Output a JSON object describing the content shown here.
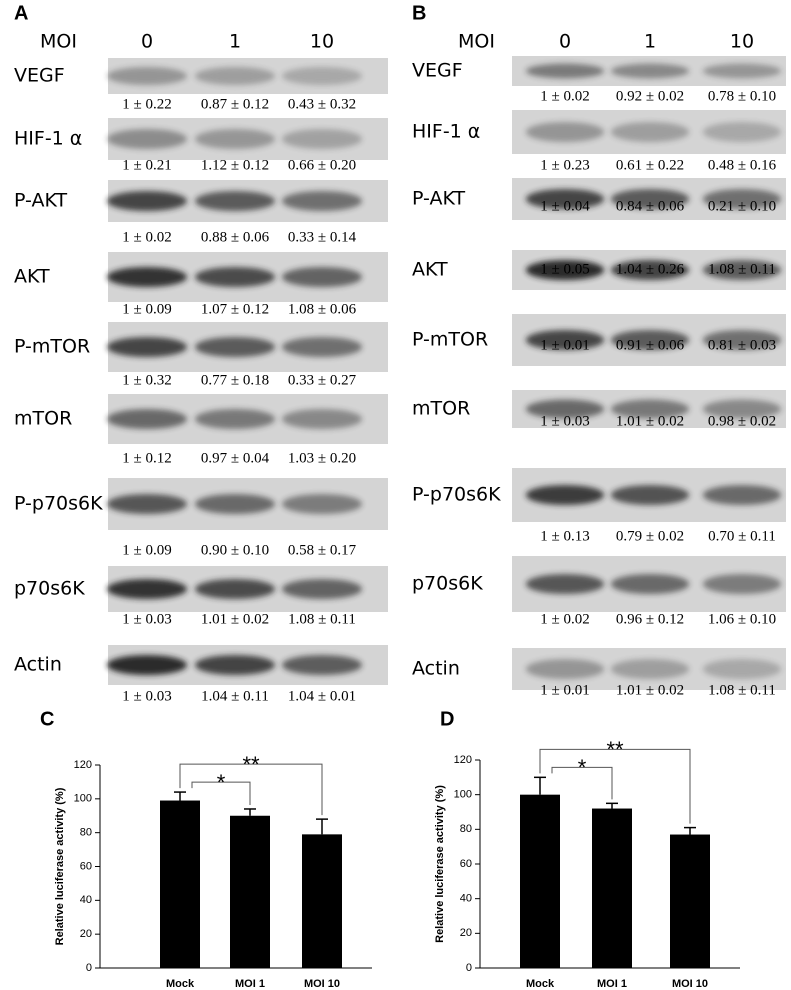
{
  "panels": [
    {
      "label": "A",
      "moi_label": "MOI",
      "mois": [
        "0",
        "1",
        "10"
      ],
      "rows": [
        {
          "protein": "VEGF",
          "quant": [
            "1 ± 0.22",
            "0.87 ± 0.12",
            "0.43 ± 0.32"
          ]
        },
        {
          "protein": "HIF-1 α",
          "quant": [
            "1 ± 0.21",
            "1.12 ± 0.12",
            "0.66 ± 0.20"
          ]
        },
        {
          "protein": "P-AKT",
          "quant": [
            "1 ± 0.02",
            "0.88 ± 0.06",
            "0.33 ± 0.14"
          ]
        },
        {
          "protein": "AKT",
          "quant": [
            "1 ± 0.09",
            "1.07 ± 0.12",
            "1.08 ± 0.06"
          ]
        },
        {
          "protein": "P-mTOR",
          "quant": [
            "1 ± 0.32",
            "0.77 ± 0.18",
            "0.33 ± 0.27"
          ]
        },
        {
          "protein": "mTOR",
          "quant": [
            "1 ± 0.12",
            "0.97 ± 0.04",
            "1.03 ± 0.20"
          ]
        },
        {
          "protein": "P-p70s6K",
          "quant": [
            "1 ± 0.09",
            "0.90 ± 0.10",
            "0.58 ± 0.17"
          ]
        },
        {
          "protein": "p70s6K",
          "quant": [
            "1 ± 0.03",
            "1.01 ± 0.02",
            "1.08 ± 0.11"
          ]
        },
        {
          "protein": "Actin",
          "quant": [
            "1 ± 0.03",
            "1.04 ± 0.11",
            "1.04 ± 0.01"
          ]
        }
      ]
    },
    {
      "label": "B",
      "moi_label": "MOI",
      "mois": [
        "0",
        "1",
        "10"
      ],
      "rows": [
        {
          "protein": "VEGF",
          "quant": [
            "1 ± 0.02",
            "0.92 ± 0.02",
            "0.78 ± 0.10"
          ]
        },
        {
          "protein": "HIF-1 α",
          "quant": [
            "1 ± 0.23",
            "0.61 ± 0.22",
            "0.48 ± 0.16"
          ]
        },
        {
          "protein": "P-AKT",
          "quant": [
            "1 ± 0.04",
            "0.84 ± 0.06",
            "0.21 ± 0.10"
          ]
        },
        {
          "protein": "AKT",
          "quant": [
            "1 ± 0.05",
            "1.04 ± 0.26",
            "1.08 ± 0.11"
          ]
        },
        {
          "protein": "P-mTOR",
          "quant": [
            "1 ± 0.01",
            "0.91 ± 0.06",
            "0.81 ± 0.03"
          ]
        },
        {
          "protein": "mTOR",
          "quant": [
            "1 ± 0.03",
            "1.01 ± 0.02",
            "0.98 ± 0.02"
          ]
        },
        {
          "protein": "P-p70s6K",
          "quant": [
            "1 ± 0.13",
            "0.79 ± 0.02",
            "0.70 ± 0.11"
          ]
        },
        {
          "protein": "p70s6K",
          "quant": [
            "1 ± 0.02",
            "0.96 ± 0.12",
            "1.06 ± 0.10"
          ]
        },
        {
          "protein": "Actin",
          "quant": [
            "1 ± 0.01",
            "1.01 ± 0.02",
            "1.08 ± 0.11"
          ]
        }
      ]
    }
  ],
  "chart_data": [
    {
      "type": "bar",
      "panel_label": "C",
      "ylabel": "Relative luciferase activity (%)",
      "categories": [
        "Mock",
        "MOI 1",
        "MOI 10"
      ],
      "values": [
        99,
        90,
        79
      ],
      "errors": [
        5,
        4,
        9
      ],
      "color": "#000000",
      "ylim": [
        0,
        120
      ],
      "yticks": [
        0,
        20,
        40,
        60,
        80,
        100,
        120
      ],
      "significance": [
        "*",
        "**"
      ]
    },
    {
      "type": "bar",
      "panel_label": "D",
      "ylabel": "Relative luciferase activity (%)",
      "categories": [
        "Mock",
        "MOI 1",
        "MOI 10"
      ],
      "values": [
        100,
        92,
        77
      ],
      "errors": [
        10,
        3,
        4
      ],
      "color": "#000000",
      "ylim": [
        0,
        120
      ],
      "yticks": [
        0,
        20,
        40,
        60,
        80,
        100,
        120
      ],
      "significance": [
        "*",
        "**"
      ]
    }
  ]
}
